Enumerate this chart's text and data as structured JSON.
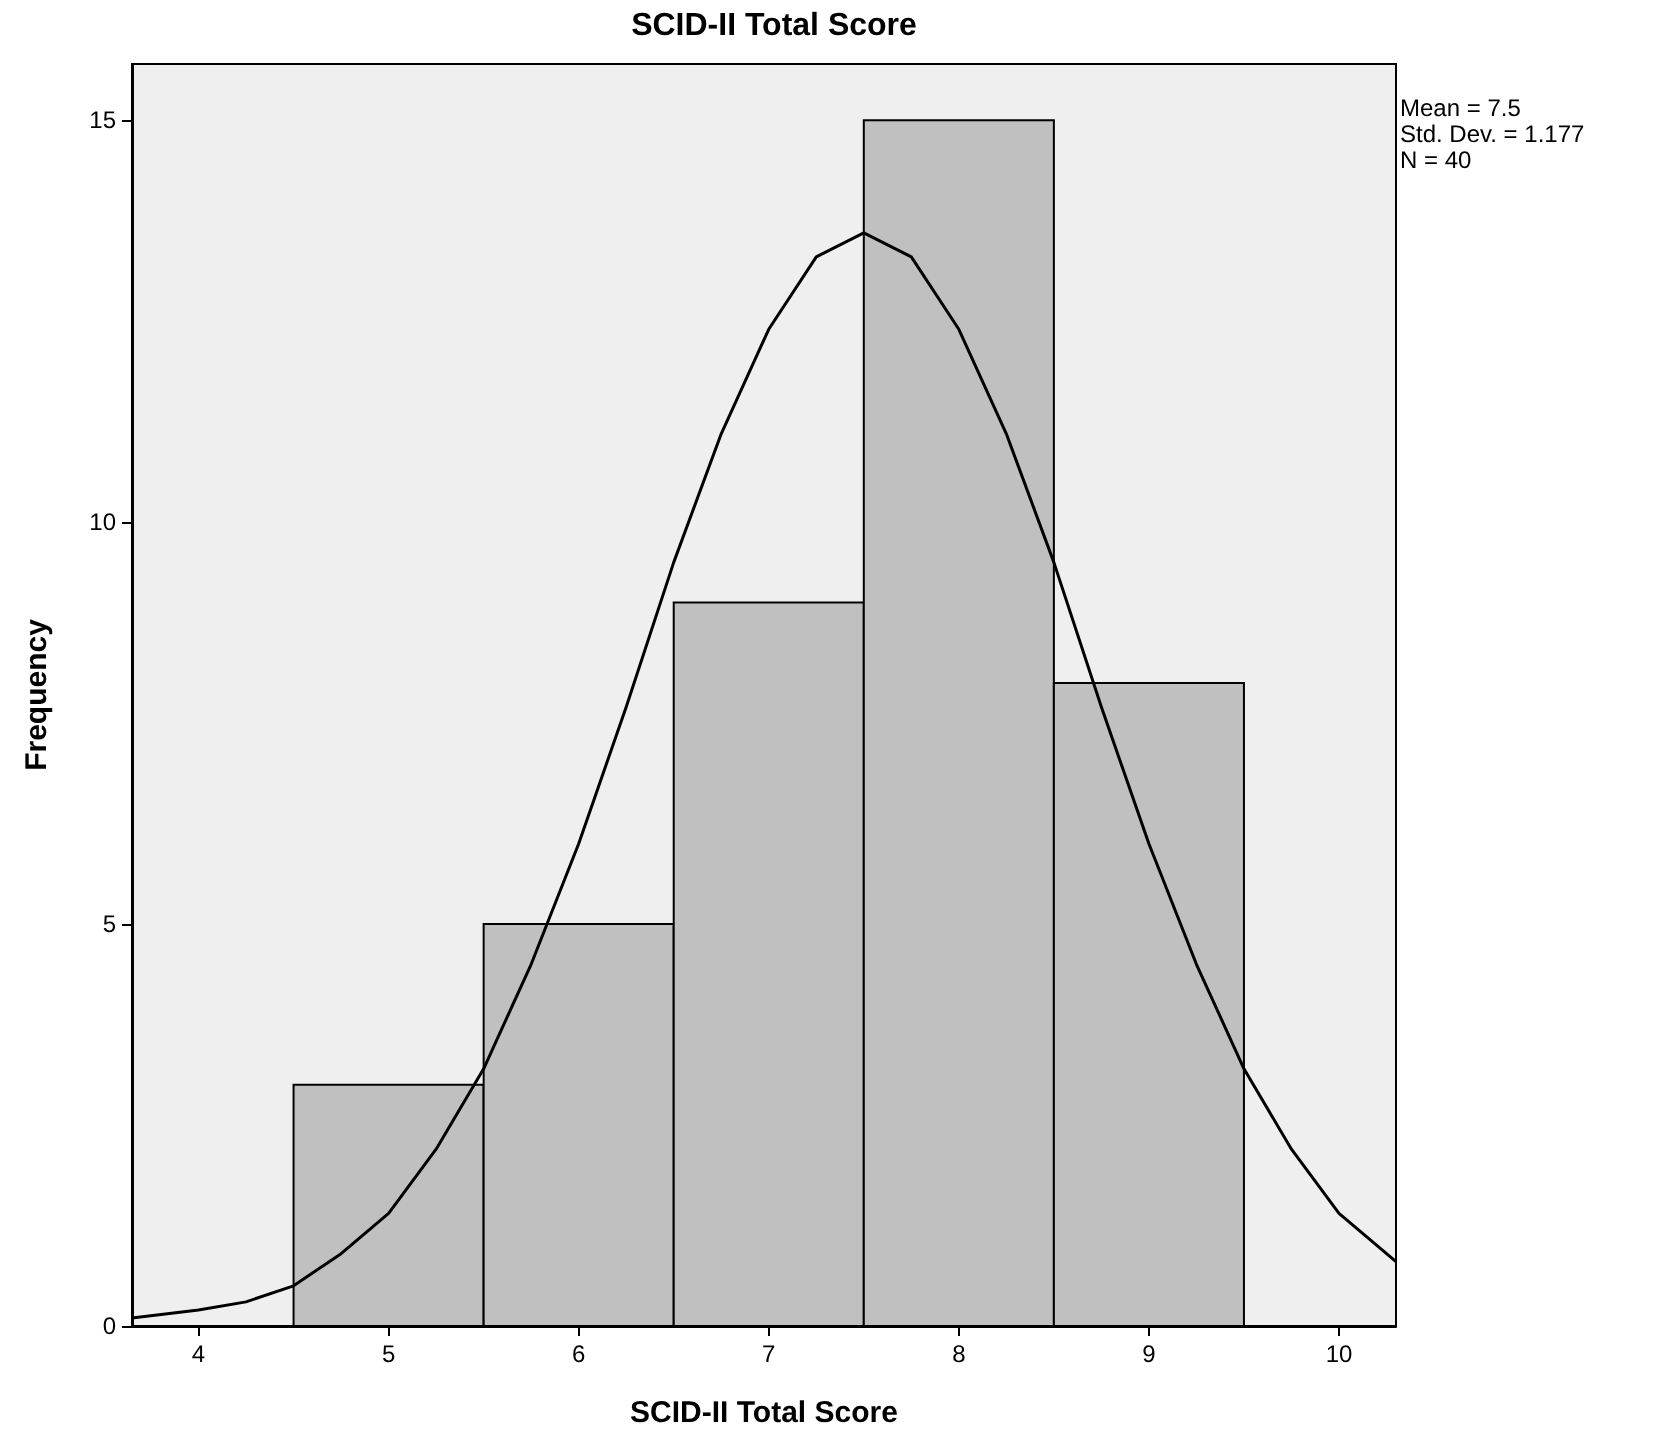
{
  "chart_data": {
    "type": "histogram",
    "title": "SCID-II Total Score",
    "xlabel": "SCID-II Total Score",
    "ylabel": "Frequency",
    "xlim": [
      3.65,
      10.3
    ],
    "xticks": [
      4,
      5,
      6,
      7,
      8,
      9,
      10
    ],
    "ylim": [
      0,
      15.7
    ],
    "yticks": [
      0,
      5,
      10,
      15
    ],
    "grid": false,
    "annotations": [
      "Mean = 7.5",
      "Std. Dev. = 1.177",
      "N = 40"
    ],
    "series": [
      {
        "bins": [
          4.5,
          5.5,
          6.5,
          7.5,
          8.5,
          9.5
        ],
        "values": [
          3,
          5,
          9,
          15,
          8
        ],
        "color": "#c0c0c0"
      },
      {
        "type": "line",
        "marker": "none",
        "line_style": "solid",
        "color": "#000000",
        "x": [
          3.65,
          4,
          4.25,
          4.5,
          4.75,
          5,
          5.25,
          5.5,
          5.75,
          6,
          6.25,
          6.5,
          6.75,
          7,
          7.25,
          7.5,
          7.75,
          8,
          8.25,
          8.5,
          8.75,
          9,
          9.25,
          9.5,
          9.75,
          10,
          10.3
        ],
        "values": [
          0.1,
          0.2,
          0.3,
          0.5,
          0.9,
          1.4,
          2.2,
          3.2,
          4.5,
          6.0,
          7.7,
          9.5,
          11.1,
          12.4,
          13.3,
          13.6,
          13.3,
          12.4,
          11.1,
          9.5,
          7.7,
          6.0,
          4.5,
          3.2,
          2.2,
          1.4,
          0.8
        ]
      }
    ]
  }
}
